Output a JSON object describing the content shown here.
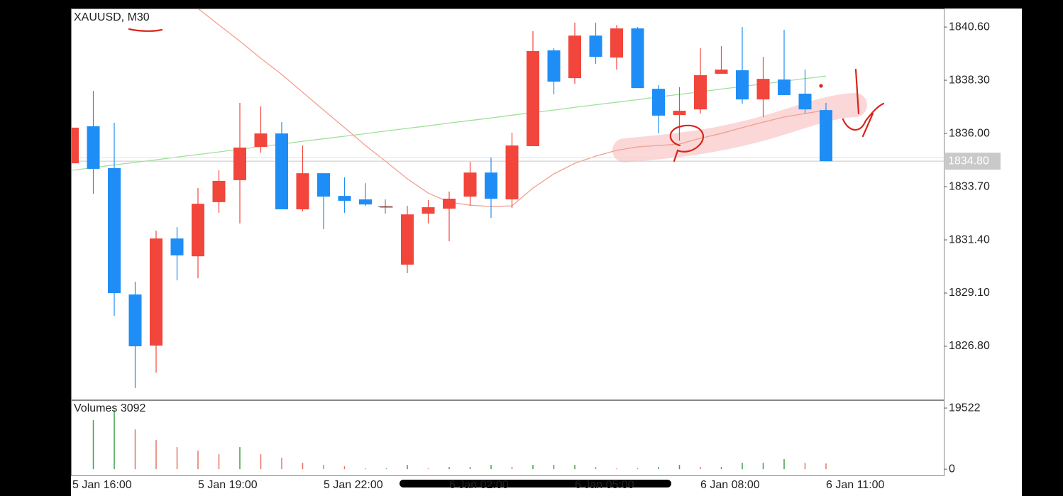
{
  "chart_data": [
    {
      "type": "candlestick",
      "title": "XAUUSD, M30",
      "categories": [
        "5 Jan 16:00",
        null,
        null,
        null,
        null,
        null,
        "5 Jan 19:00",
        null,
        null,
        null,
        null,
        null,
        "5 Jan 22:00",
        null,
        null,
        null,
        null,
        null,
        "6 Jan 02:00",
        null,
        null,
        null,
        null,
        null,
        "6 Jan 05:00",
        null,
        null,
        null,
        null,
        null,
        "6 Jan 08:00",
        null,
        null,
        null,
        null,
        null,
        "6 Jan 11:00"
      ],
      "open": [
        1834.71,
        1836.31,
        1834.5,
        1829.04,
        1826.83,
        1831.46,
        1830.69,
        1833.03,
        1833.98,
        1835.42,
        1836.0,
        1832.72,
        1834.28,
        1833.3,
        1833.15,
        1832.84,
        1830.33,
        1832.53,
        1832.75,
        1833.27,
        1834.31,
        1833.15,
        1835.45,
        1839.59,
        1838.39,
        1840.23,
        1839.28,
        1840.54,
        1837.93,
        1836.8,
        1837.04,
        1838.58,
        1838.73,
        1837.47,
        1838.33,
        1837.72,
        1837.01
      ],
      "high": [
        1836.25,
        1837.84,
        1836.46,
        1829.59,
        1831.8,
        1831.95,
        1833.64,
        1834.41,
        1837.32,
        1837.17,
        1836.49,
        1835.48,
        1834.28,
        1834.1,
        1833.85,
        1832.87,
        1832.87,
        1833.12,
        1833.49,
        1834.77,
        1834.96,
        1836.03,
        1840.42,
        1839.68,
        1840.79,
        1840.79,
        1840.69,
        1840.6,
        1838.09,
        1838.0,
        1839.68,
        1839.77,
        1840.6,
        1839.31,
        1840.48,
        1838.76,
        1837.32
      ],
      "low": [
        1834.71,
        1833.39,
        1828.12,
        1824.99,
        1825.66,
        1829.65,
        1829.74,
        1832.57,
        1832.11,
        1835.17,
        1832.72,
        1832.63,
        1831.86,
        1832.57,
        1832.87,
        1832.81,
        1829.96,
        1832.11,
        1831.34,
        1832.87,
        1832.35,
        1832.78,
        1835.45,
        1837.69,
        1838.15,
        1839.01,
        1838.76,
        1837.96,
        1836.0,
        1835.69,
        1836.86,
        1838.58,
        1837.29,
        1836.71,
        1837.66,
        1836.86,
        1834.8
      ],
      "close": [
        1836.25,
        1834.47,
        1829.1,
        1826.8,
        1831.46,
        1830.73,
        1832.96,
        1833.95,
        1835.39,
        1836.0,
        1832.72,
        1834.28,
        1833.27,
        1833.09,
        1832.93,
        1832.84,
        1832.5,
        1832.81,
        1833.18,
        1834.31,
        1833.18,
        1835.48,
        1839.56,
        1838.24,
        1840.23,
        1839.31,
        1840.54,
        1837.96,
        1836.77,
        1836.98,
        1838.52,
        1838.76,
        1837.47,
        1838.36,
        1837.66,
        1837.04,
        1834.8
      ],
      "up_color": "#f2453b",
      "down_color": "#1e8ef6",
      "overlays": [
        {
          "color": "#f0a090",
          "values": [
            null,
            null,
            null,
            null,
            null,
            null,
            1841.4,
            1840.69,
            1839.99,
            1839.25,
            1838.55,
            1837.78,
            1837.01,
            1836.25,
            1835.48,
            1834.77,
            1834.04,
            1833.42,
            1833.03,
            1832.9,
            1832.84,
            1832.87,
            1833.64,
            1834.25,
            1834.71,
            1835.02,
            1835.27,
            1835.42,
            1835.48,
            1835.54,
            1835.79,
            1836.0,
            1836.25,
            1836.49,
            1836.71,
            1836.86,
            1837.01
          ]
        },
        {
          "color": "#9ee09a",
          "values": [
            1834.41,
            1834.52,
            1834.64,
            1834.75,
            1834.86,
            1834.98,
            1835.09,
            1835.2,
            1835.32,
            1835.43,
            1835.54,
            1835.66,
            1835.77,
            1835.88,
            1835.99,
            1836.11,
            1836.22,
            1836.33,
            1836.45,
            1836.56,
            1836.67,
            1836.79,
            1836.9,
            1837.01,
            1837.13,
            1837.24,
            1837.35,
            1837.46,
            1837.58,
            1837.69,
            1837.8,
            1837.92,
            1838.03,
            1838.14,
            1838.26,
            1838.37,
            1838.48
          ]
        }
      ],
      "current_price": {
        "value": 1834.8,
        "label": "1834.80"
      },
      "ylim": [
        1824.5,
        1841.4
      ],
      "yticks": [
        {
          "value": 1840.6,
          "label": "1840.60"
        },
        {
          "value": 1838.3,
          "label": "1838.30"
        },
        {
          "value": 1836,
          "label": "1836.00"
        },
        {
          "value": 1833.7,
          "label": "1833.70"
        },
        {
          "value": 1831.4,
          "label": "1831.40"
        },
        {
          "value": 1829.1,
          "label": "1829.10"
        },
        {
          "value": 1826.8,
          "label": "1826.80"
        }
      ]
    },
    {
      "type": "bar",
      "title": "Volumes 3092",
      "values": [
        null,
        15660,
        18840,
        12710,
        9310,
        7040,
        5900,
        4770,
        7040,
        4770,
        3630,
        2040,
        1360,
        910,
        230,
        230,
        1360,
        230,
        680,
        680,
        1360,
        680,
        1360,
        1360,
        1360,
        680,
        230,
        230,
        680,
        1360,
        680,
        680,
        2040,
        2040,
        3180,
        2040,
        1820
      ],
      "up_color": "#43a047",
      "down_color": "#e57368",
      "ylim": [
        -2000,
        21800
      ],
      "yticks": [
        19522,
        0
      ]
    }
  ]
}
